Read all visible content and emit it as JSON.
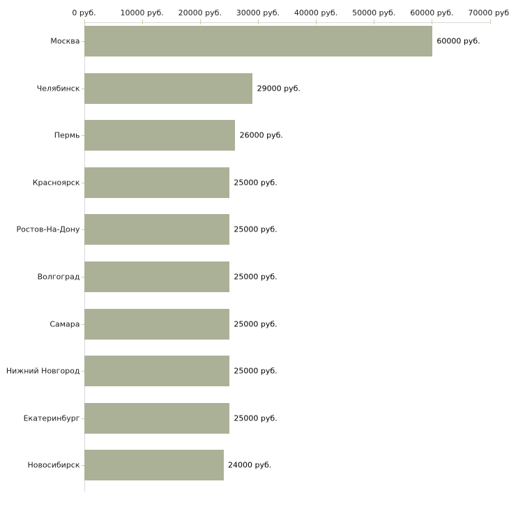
{
  "chart_data": {
    "type": "bar",
    "orientation": "horizontal",
    "title": "",
    "xlabel": "",
    "ylabel": "",
    "categories": [
      "Москва",
      "Челябинск",
      "Пермь",
      "Красноярск",
      "Ростов-На-Дону",
      "Волгоград",
      "Самара",
      "Нижний Новгород",
      "Екатеринбург",
      "Новосибирск"
    ],
    "values": [
      60000,
      29000,
      26000,
      25000,
      25000,
      25000,
      25000,
      25000,
      25000,
      24000
    ],
    "value_labels": [
      "60000 руб.",
      "29000 руб.",
      "26000 руб.",
      "25000 руб.",
      "25000 руб.",
      "25000 руб.",
      "25000 руб.",
      "25000 руб.",
      "25000 руб.",
      "24000 руб."
    ],
    "x_tick_labels": [
      "0 руб.",
      "10000 руб.",
      "20000 руб.",
      "30000 руб.",
      "40000 руб.",
      "50000 руб.",
      "60000 руб.",
      "70000 руб."
    ],
    "x_tick_values": [
      0,
      10000,
      20000,
      30000,
      40000,
      50000,
      60000,
      70000
    ],
    "xlim": [
      0,
      70000
    ],
    "grid": false,
    "legend": false,
    "colors": {
      "bar_fill": "#abb197",
      "axis_line": "#d9d9d9",
      "tick_mark": "#cdcb9d",
      "text": "#1c1c1c",
      "value_text": "#000000",
      "background": "#ffffff"
    }
  }
}
